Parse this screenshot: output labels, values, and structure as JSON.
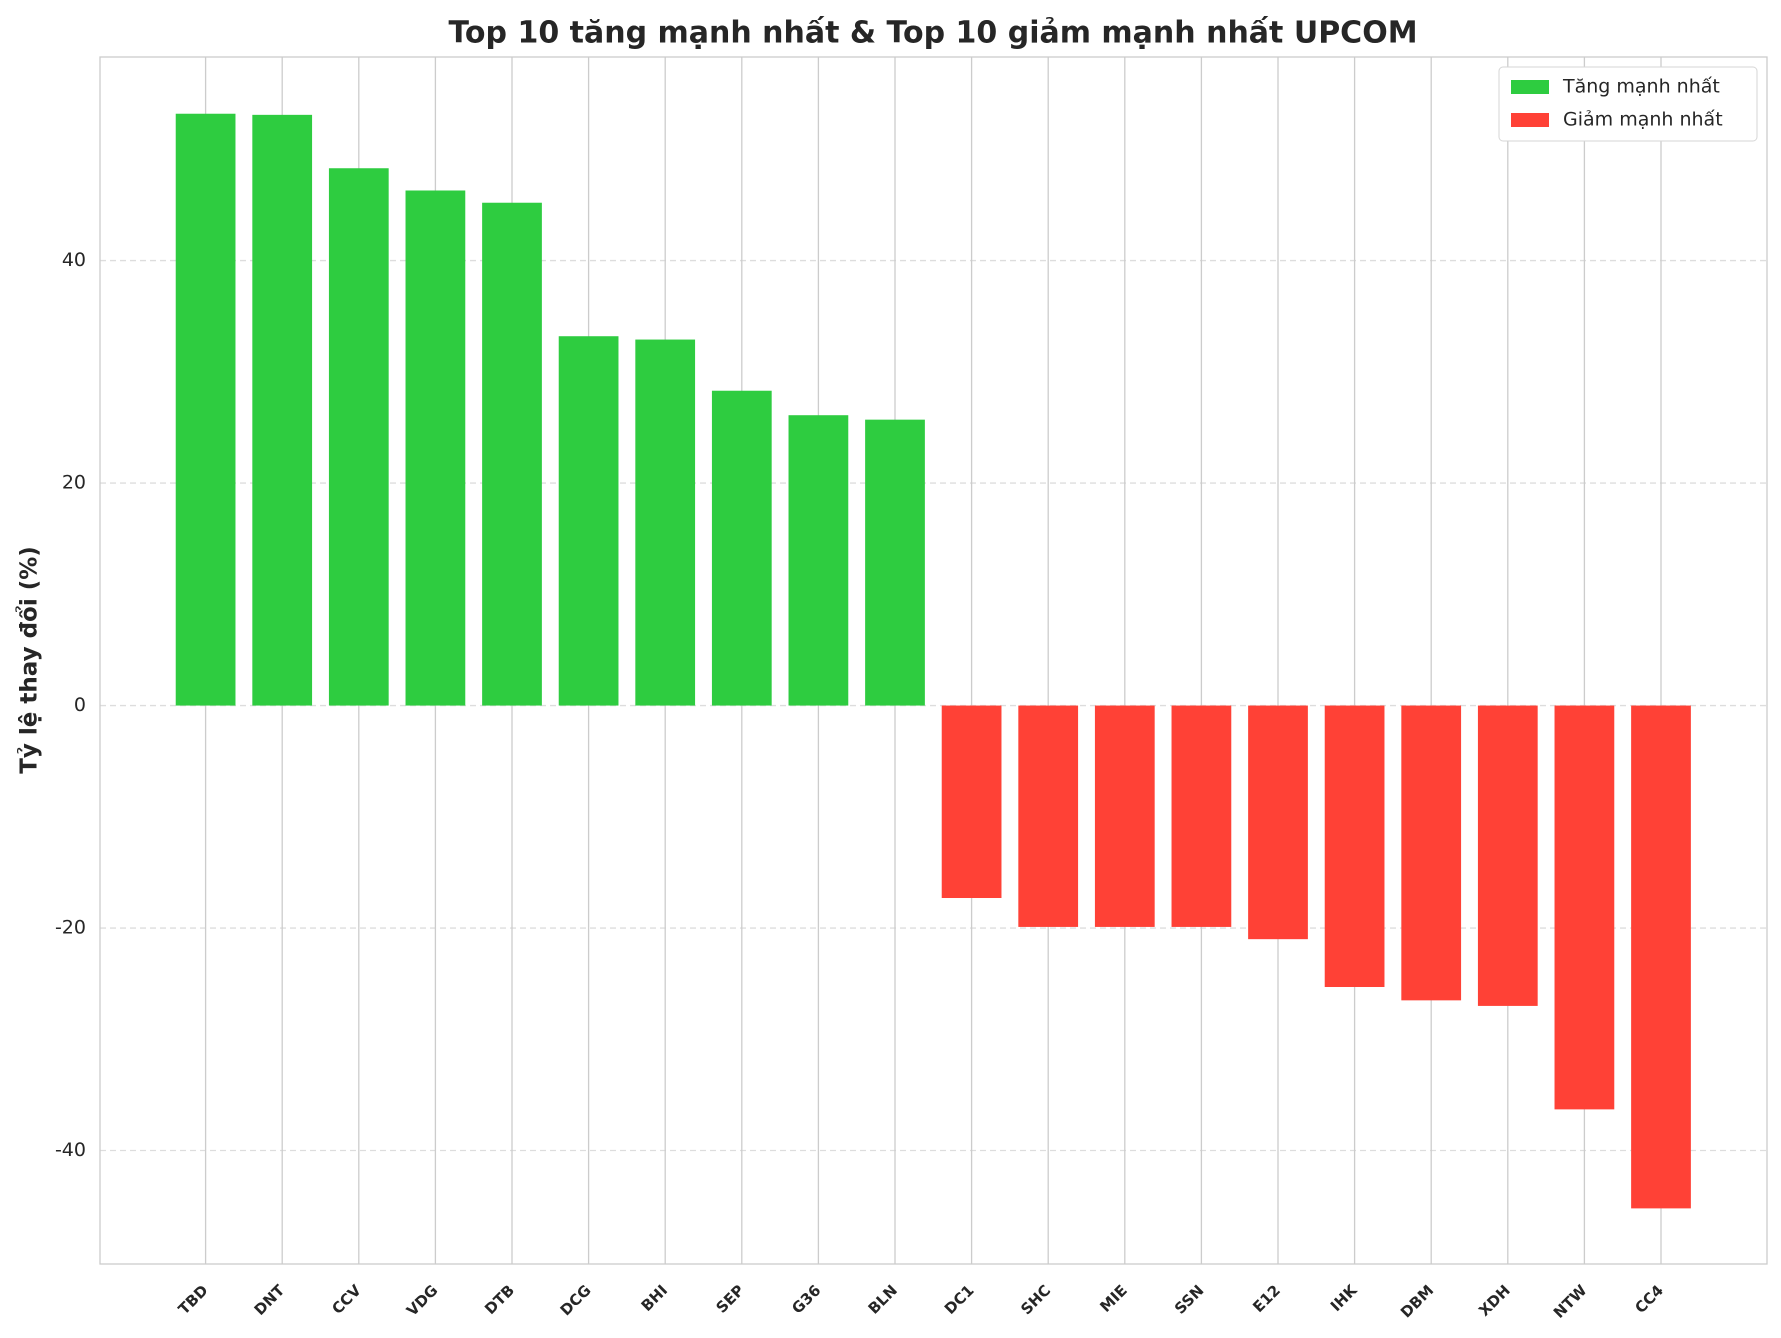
{
  "chart_data": {
    "type": "bar",
    "title": "Top 10 tăng mạnh nhất & Top 10 giảm mạnh nhất UPCOM",
    "y_label": "Tỷ lệ thay đổi (%)",
    "categories": [
      "TBD",
      "DNT",
      "CCV",
      "VDG",
      "DTB",
      "DCG",
      "BHI",
      "SEP",
      "G36",
      "BLN",
      "DC1",
      "SHC",
      "MIE",
      "SSN",
      "E12",
      "IHK",
      "DBM",
      "XDH",
      "NTW",
      "CC4"
    ],
    "series": [
      {
        "name": "Tăng mạnh nhất",
        "color": "#2ecc40",
        "values": [
          53.2,
          53.1,
          48.3,
          46.3,
          45.2,
          33.2,
          32.9,
          28.3,
          26.1,
          25.7,
          null,
          null,
          null,
          null,
          null,
          null,
          null,
          null,
          null,
          null
        ]
      },
      {
        "name": "Giảm mạnh nhất",
        "color": "#ff4136",
        "values": [
          null,
          null,
          null,
          null,
          null,
          null,
          null,
          null,
          null,
          null,
          -17.3,
          -19.9,
          -19.9,
          -19.9,
          -21.0,
          -25.3,
          -26.5,
          -27.0,
          -36.3,
          -45.2
        ]
      }
    ],
    "ylim": [
      -50.2,
      58.3
    ],
    "yticks": [
      -40,
      -20,
      0,
      20,
      40
    ],
    "grid": true,
    "legend": "upper right"
  }
}
